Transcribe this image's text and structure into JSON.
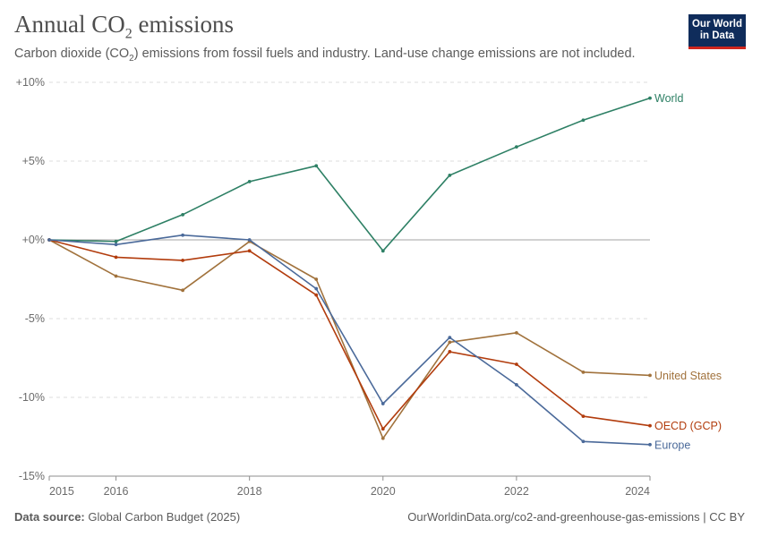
{
  "header": {
    "title_main": "Annual CO",
    "title_sub": "2",
    "title_rest": " emissions",
    "subtitle_main": "Carbon dioxide (CO",
    "subtitle_sub": "2",
    "subtitle_rest": ") emissions from fossil fuels and industry. Land-use change emissions are not included.",
    "logo_line1": "Our World",
    "logo_line2": "in Data"
  },
  "footer": {
    "source_label": "Data source:",
    "source_text": " Global Carbon Budget (2025)",
    "url_text": "OurWorldinData.org/co2-and-greenhouse-gas-emissions | CC BY"
  },
  "colors": {
    "world": "#2e8065",
    "united_states": "#a1723c",
    "oecd": "#b23c0d",
    "europe": "#4b6a9a",
    "grid": "#dcdcdc",
    "zero_line": "#a3a3a3"
  },
  "chart_data": {
    "type": "line",
    "x": [
      2015,
      2016,
      2017,
      2018,
      2019,
      2020,
      2021,
      2022,
      2023,
      2024
    ],
    "x_ticks": [
      2015,
      2016,
      2018,
      2020,
      2022,
      2024
    ],
    "x_tick_labels": [
      "2015",
      "2016",
      "2018",
      "2020",
      "2022",
      "2024"
    ],
    "y_ticks": [
      10,
      5,
      0,
      -5,
      -10,
      -15
    ],
    "y_tick_labels": [
      "+10%",
      "+5%",
      "+0%",
      "-5%",
      "-10%",
      "-15%"
    ],
    "ylim": [
      -15,
      10
    ],
    "xlim": [
      2015,
      2024
    ],
    "grid": "horizontal dashed",
    "legend": "line-end labels",
    "series": [
      {
        "name": "World",
        "color": "#2e8065",
        "values": [
          0,
          -0.1,
          1.6,
          3.7,
          4.7,
          -0.7,
          4.1,
          5.9,
          7.6,
          9.0
        ]
      },
      {
        "name": "United States",
        "color": "#a1723c",
        "values": [
          0,
          -2.3,
          -3.2,
          -0.1,
          -2.5,
          -12.6,
          -6.5,
          -5.9,
          -8.4,
          -8.6
        ]
      },
      {
        "name": "OECD (GCP)",
        "color": "#b23c0d",
        "values": [
          0,
          -1.1,
          -1.3,
          -0.7,
          -3.5,
          -12.0,
          -7.1,
          -7.9,
          -11.2,
          -11.8
        ]
      },
      {
        "name": "Europe",
        "color": "#4b6a9a",
        "values": [
          0,
          -0.3,
          0.3,
          0.0,
          -3.1,
          -10.4,
          -6.2,
          -9.2,
          -12.8,
          -13.0
        ]
      }
    ]
  }
}
